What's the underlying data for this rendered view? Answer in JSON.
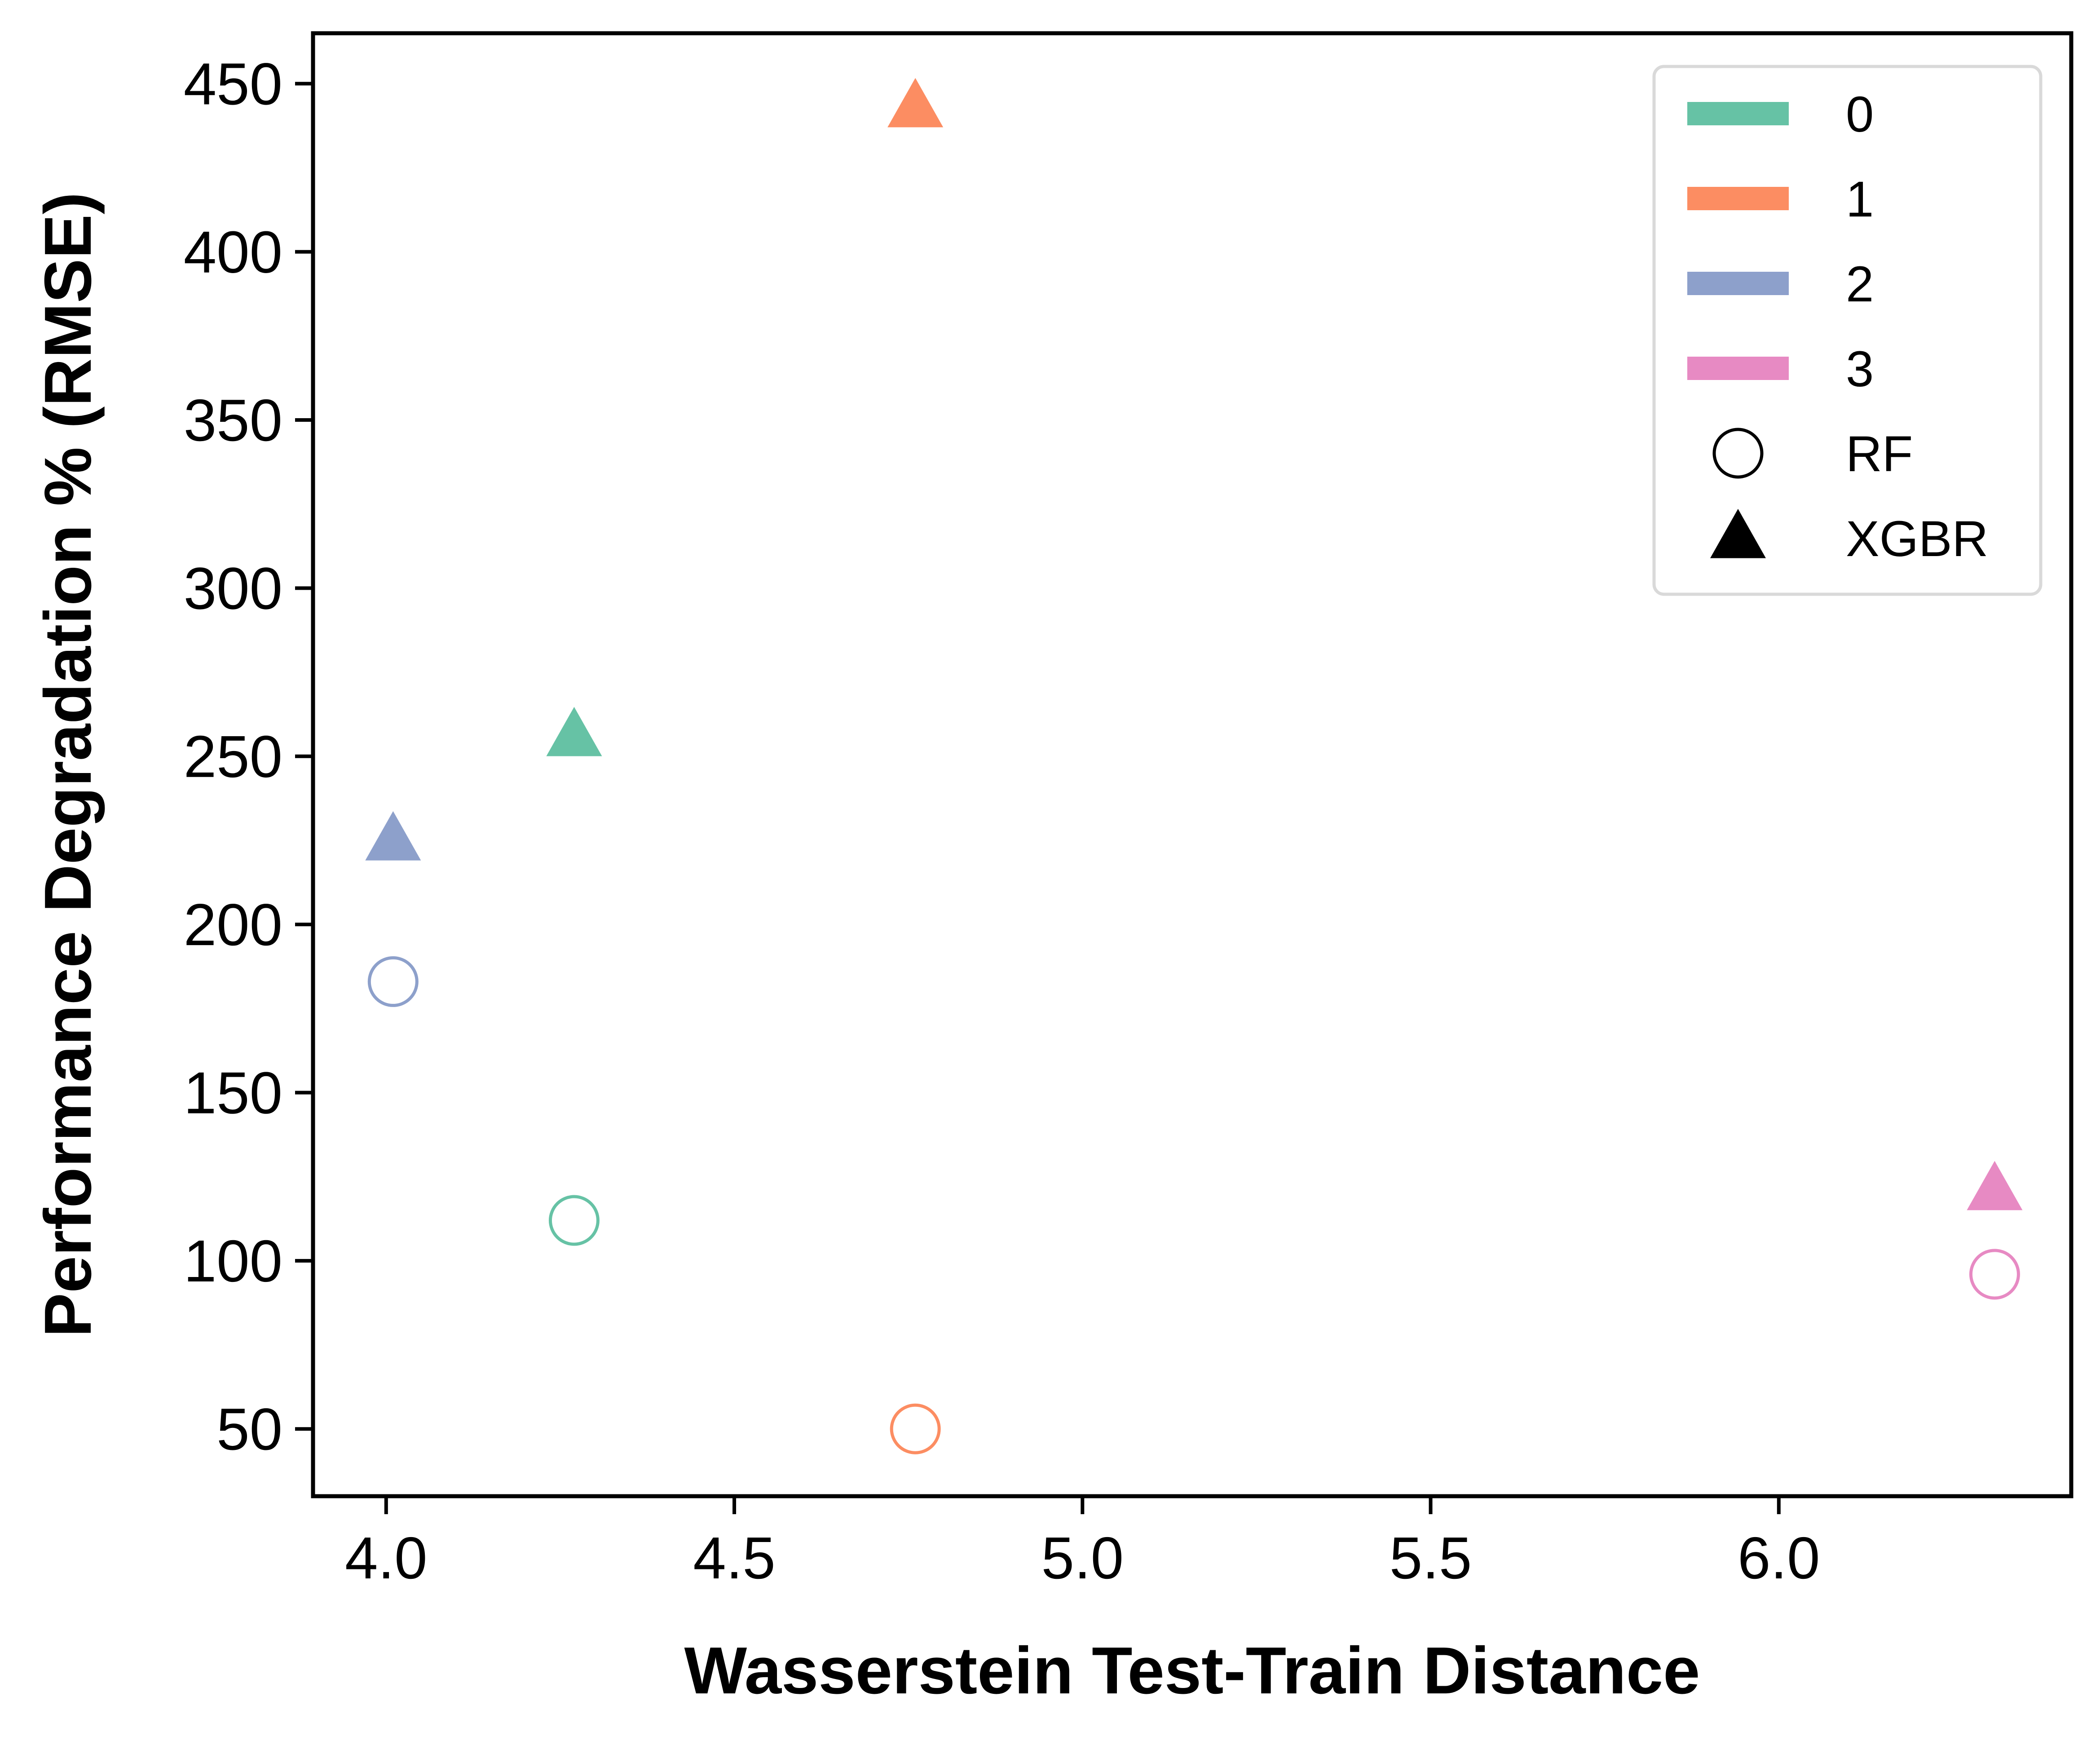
{
  "chart_data": {
    "type": "scatter",
    "title": "",
    "xlabel": "Wasserstein Test-Train Distance",
    "ylabel": "Performance Degradation % (RMSE)",
    "xlim": [
      3.895,
      6.42
    ],
    "ylim": [
      30,
      465
    ],
    "xticks": [
      4.0,
      4.5,
      5.0,
      5.5,
      6.0
    ],
    "xtick_labels": [
      "4.0",
      "4.5",
      "5.0",
      "5.5",
      "6.0"
    ],
    "yticks": [
      50,
      100,
      150,
      200,
      250,
      300,
      350,
      400,
      450
    ],
    "ytick_labels": [
      "50",
      "100",
      "150",
      "200",
      "250",
      "300",
      "350",
      "400",
      "450"
    ],
    "grid": false,
    "legend_position": "top-right",
    "legend": {
      "colors": [
        {
          "label": "0",
          "color": "#66c2a5"
        },
        {
          "label": "1",
          "color": "#fc8d62"
        },
        {
          "label": "2",
          "color": "#8da0cb"
        },
        {
          "label": "3",
          "color": "#e78ac3"
        }
      ],
      "markers": [
        {
          "label": "RF",
          "marker": "circle-open"
        },
        {
          "label": "XGBR",
          "marker": "triangle-filled"
        }
      ]
    },
    "series": [
      {
        "group": "0",
        "model": "RF",
        "marker": "circle-open",
        "color": "#66c2a5",
        "x": 4.27,
        "y": 112
      },
      {
        "group": "0",
        "model": "XGBR",
        "marker": "triangle-filled",
        "color": "#66c2a5",
        "x": 4.27,
        "y": 256
      },
      {
        "group": "1",
        "model": "RF",
        "marker": "circle-open",
        "color": "#fc8d62",
        "x": 4.76,
        "y": 50
      },
      {
        "group": "1",
        "model": "XGBR",
        "marker": "triangle-filled",
        "color": "#fc8d62",
        "x": 4.76,
        "y": 443
      },
      {
        "group": "2",
        "model": "RF",
        "marker": "circle-open",
        "color": "#8da0cb",
        "x": 4.01,
        "y": 183
      },
      {
        "group": "2",
        "model": "XGBR",
        "marker": "triangle-filled",
        "color": "#8da0cb",
        "x": 4.01,
        "y": 225
      },
      {
        "group": "3",
        "model": "RF",
        "marker": "circle-open",
        "color": "#e78ac3",
        "x": 6.31,
        "y": 96
      },
      {
        "group": "3",
        "model": "XGBR",
        "marker": "triangle-filled",
        "color": "#e78ac3",
        "x": 6.31,
        "y": 121
      }
    ]
  }
}
